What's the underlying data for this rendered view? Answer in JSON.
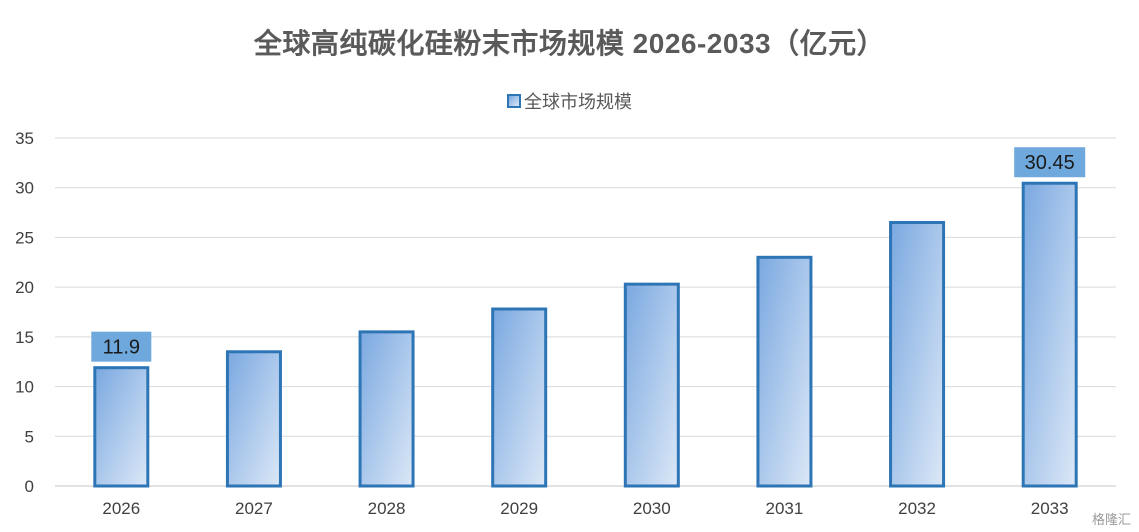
{
  "chart_data": {
    "type": "bar",
    "title": "全球高纯碳化硅粉末市场规模 2026-2033（亿元）",
    "categories": [
      "2026",
      "2027",
      "2028",
      "2029",
      "2030",
      "2031",
      "2032",
      "2033"
    ],
    "series": [
      {
        "name": "全球市场规模",
        "values": [
          11.9,
          13.5,
          15.5,
          17.8,
          20.3,
          23.0,
          26.5,
          30.45
        ]
      }
    ],
    "data_labels": [
      {
        "category": "2026",
        "text": "11.9"
      },
      {
        "category": "2033",
        "text": "30.45"
      }
    ],
    "ylim": [
      0,
      35
    ],
    "yticks": [
      0,
      5,
      10,
      15,
      20,
      25,
      30,
      35
    ],
    "grid": true,
    "legend_position": "top-center"
  },
  "colors": {
    "bar_border": "#2e75b6",
    "bar_fill_dark": "#7aa8e0",
    "bar_fill_light": "#dce8f7",
    "label_box": "#6fa8dc",
    "grid": "#d9d9d9"
  },
  "watermark": "格隆汇"
}
